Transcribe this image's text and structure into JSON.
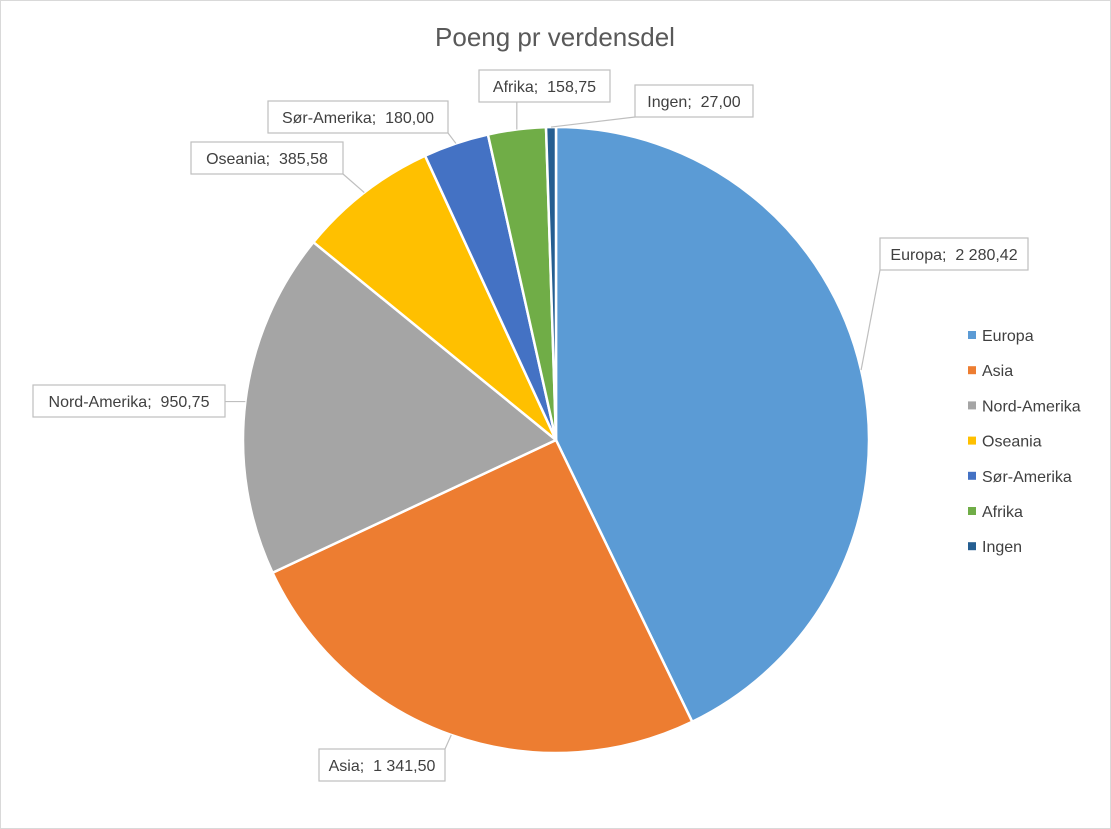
{
  "chart_data": {
    "type": "pie",
    "title": "Poeng pr verdensdel",
    "legend_position": "right",
    "slices": [
      {
        "name": "Europa",
        "value": 2280.42,
        "label": "Europa;  2 280,42",
        "color": "#5B9BD5"
      },
      {
        "name": "Asia",
        "value": 1341.5,
        "label": "Asia;  1 341,50",
        "color": "#ED7D31"
      },
      {
        "name": "Nord-Amerika",
        "value": 950.75,
        "label": "Nord-Amerika;  950,75",
        "color": "#A5A5A5"
      },
      {
        "name": "Oseania",
        "value": 385.58,
        "label": "Oseania;  385,58",
        "color": "#FFC000"
      },
      {
        "name": "Sør-Amerika",
        "value": 180.0,
        "label": "Sør-Amerika;  180,00",
        "color": "#4472C4"
      },
      {
        "name": "Afrika",
        "value": 158.75,
        "label": "Afrika;  158,75",
        "color": "#70AD47"
      },
      {
        "name": "Ingen",
        "value": 27.0,
        "label": "Ingen;  27,00",
        "color": "#255E91"
      }
    ]
  }
}
